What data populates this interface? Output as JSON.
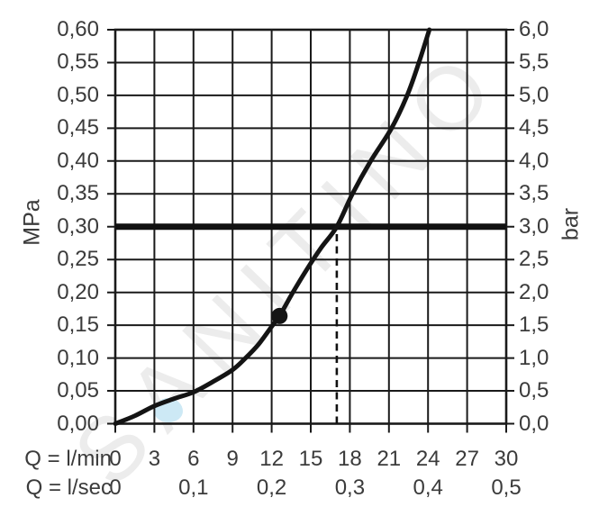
{
  "watermark": {
    "text": "SANITINO",
    "color": "#ececec",
    "drop_color": "#cde9f5"
  },
  "chart_data": {
    "type": "line",
    "title": "",
    "grid": {
      "x_step": 3,
      "y_step": 0.05,
      "grid_on": true
    },
    "line_color": "#1a1a1a",
    "x_range": [
      0,
      30
    ],
    "y_left": {
      "label": "MPa",
      "range": [
        0,
        0.6
      ],
      "tick_values": [
        0.6,
        0.55,
        0.5,
        0.45,
        0.4,
        0.35,
        0.3,
        0.25,
        0.2,
        0.15,
        0.1,
        0.05,
        0.0
      ],
      "tick_labels": [
        "0,60",
        "0,55",
        "0,50",
        "0,45",
        "0,40",
        "0,35",
        "0,30",
        "0,25",
        "0,20",
        "0,15",
        "0,10",
        "0,05",
        "0,00"
      ]
    },
    "y_right": {
      "label": "bar",
      "range": [
        0,
        6
      ],
      "tick_values": [
        6.0,
        5.5,
        5.0,
        4.5,
        4.0,
        3.5,
        3.0,
        2.5,
        2.0,
        1.5,
        1.0,
        0.5,
        0.0
      ],
      "tick_labels": [
        "6,0",
        "5,5",
        "5,0",
        "4,5",
        "4,0",
        "3,5",
        "3,0",
        "2,5",
        "2,0",
        "1,5",
        "1,0",
        "0,5",
        "0,0"
      ]
    },
    "x_rows": [
      {
        "label": "Q = l/min",
        "tick_values": [
          0,
          3,
          6,
          9,
          12,
          15,
          18,
          21,
          24,
          27,
          30
        ],
        "tick_labels": [
          "0",
          "3",
          "6",
          "9",
          "12",
          "15",
          "18",
          "21",
          "24",
          "27",
          "30"
        ]
      },
      {
        "label": "Q = l/sec",
        "tick_values": [
          0,
          6,
          12,
          18,
          24,
          30
        ],
        "tick_labels": [
          "0",
          "0,1",
          "0,2",
          "0,3",
          "0,4",
          "0,5"
        ]
      }
    ],
    "series": [
      {
        "name": "flow-pressure-curve",
        "points": [
          [
            0,
            0
          ],
          [
            1.5,
            0.012
          ],
          [
            3,
            0.027
          ],
          [
            4.5,
            0.038
          ],
          [
            6,
            0.048
          ],
          [
            7.5,
            0.064
          ],
          [
            9,
            0.082
          ],
          [
            10,
            0.1
          ],
          [
            11,
            0.121
          ],
          [
            12,
            0.148
          ],
          [
            12.6,
            0.164
          ],
          [
            13.6,
            0.199
          ],
          [
            14.7,
            0.235
          ],
          [
            15.8,
            0.268
          ],
          [
            17,
            0.3
          ],
          [
            18.2,
            0.35
          ],
          [
            19.6,
            0.4
          ],
          [
            21.2,
            0.45
          ],
          [
            22.4,
            0.5
          ],
          [
            23.3,
            0.55
          ],
          [
            24.1,
            0.6
          ]
        ]
      }
    ],
    "marker": {
      "x": 12.6,
      "y": 0.164
    },
    "reference_line_y": 0.3,
    "dashed_line": {
      "x": 17,
      "y_from": 0,
      "y_to": 0.3
    }
  }
}
